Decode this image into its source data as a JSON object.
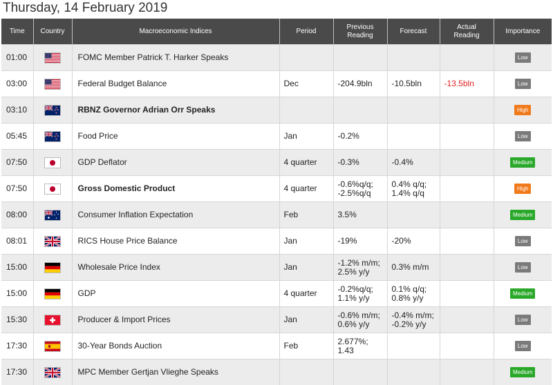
{
  "page_title": "Thursday, 14 February 2019",
  "columns": {
    "time": "Time",
    "country": "Country",
    "indices": "Macroeconomic Indices",
    "period": "Period",
    "previous": [
      "Previous",
      "Reading"
    ],
    "forecast": "Forecast",
    "actual": [
      "Actual",
      "Reading"
    ],
    "importance": "Importance"
  },
  "rows": [
    {
      "time": "01:00",
      "flag": "us-flag-icon",
      "event": "FOMC Member Patrick T. Harker Speaks",
      "bold": false,
      "period": "",
      "previous": [
        "",
        ""
      ],
      "forecast": [
        "",
        ""
      ],
      "actual": "",
      "importance": "Low"
    },
    {
      "time": "03:00",
      "flag": "us-flag-icon",
      "event": "Federal Budget Balance",
      "bold": false,
      "period": "Dec",
      "previous": [
        "-204.9bln",
        ""
      ],
      "forecast": [
        "-10.5bln",
        ""
      ],
      "actual": "-13.5bln",
      "importance": "Low"
    },
    {
      "time": "03:10",
      "flag": "nz-flag-icon",
      "event": "RBNZ Governor Adrian Orr Speaks",
      "bold": true,
      "period": "",
      "previous": [
        "",
        ""
      ],
      "forecast": [
        "",
        ""
      ],
      "actual": "",
      "importance": "High"
    },
    {
      "time": "05:45",
      "flag": "nz-flag-icon",
      "event": "Food Price",
      "bold": false,
      "period": "Jan",
      "previous": [
        "-0.2%",
        ""
      ],
      "forecast": [
        "",
        ""
      ],
      "actual": "",
      "importance": "Low"
    },
    {
      "time": "07:50",
      "flag": "jp-flag-icon",
      "event": "GDP Deflator",
      "bold": false,
      "period": "4 quarter",
      "previous": [
        "-0.3%",
        ""
      ],
      "forecast": [
        "-0.4%",
        ""
      ],
      "actual": "",
      "importance": "Medium"
    },
    {
      "time": "07:50",
      "flag": "jp-flag-icon",
      "event": "Gross Domestic Product",
      "bold": true,
      "period": "4 quarter",
      "previous": [
        "-0.6%q/q;",
        "-2.5%q/q"
      ],
      "forecast": [
        "0.4% q/q;",
        "1.4% q/q"
      ],
      "actual": "",
      "importance": "High"
    },
    {
      "time": "08:00",
      "flag": "au-flag-icon",
      "event": "Consumer Inflation Expectation",
      "bold": false,
      "period": "Feb",
      "previous": [
        "3.5%",
        ""
      ],
      "forecast": [
        "",
        ""
      ],
      "actual": "",
      "importance": "Medium"
    },
    {
      "time": "08:01",
      "flag": "gb-flag-icon",
      "event": "RICS House Price Balance",
      "bold": false,
      "period": "Jan",
      "previous": [
        "-19%",
        ""
      ],
      "forecast": [
        "-20%",
        ""
      ],
      "actual": "",
      "importance": "Low"
    },
    {
      "time": "15:00",
      "flag": "de-flag-icon",
      "event": "Wholesale Price Index",
      "bold": false,
      "period": "Jan",
      "previous": [
        "-1.2% m/m;",
        "2.5% y/y"
      ],
      "forecast": [
        "0.3% m/m",
        ""
      ],
      "actual": "",
      "importance": "Low"
    },
    {
      "time": "15:00",
      "flag": "de-flag-icon",
      "event": "GDP",
      "bold": false,
      "period": "4 quarter",
      "previous": [
        "-0.2%q/q;",
        "1.1% y/y"
      ],
      "forecast": [
        "0.1% q/q;",
        "0.8% y/y"
      ],
      "actual": "",
      "importance": "Medium"
    },
    {
      "time": "15:30",
      "flag": "ch-flag-icon",
      "event": "Producer & Import Prices",
      "bold": false,
      "period": "Jan",
      "previous": [
        "-0.6% m/m;",
        "0.6% y/y"
      ],
      "forecast": [
        "-0.4% m/m;",
        "-0.2% y/y"
      ],
      "actual": "",
      "importance": "Low"
    },
    {
      "time": "17:30",
      "flag": "es-flag-icon",
      "event": "30-Year Bonds Auction",
      "bold": false,
      "period": "Feb",
      "previous": [
        "2.677%;",
        "1.43"
      ],
      "forecast": [
        "",
        ""
      ],
      "actual": "",
      "importance": "Low"
    },
    {
      "time": "17:30",
      "flag": "gb-flag-icon",
      "event": "MPC Member Gertjan Vlieghe Speaks",
      "bold": false,
      "period": "",
      "previous": [
        "",
        ""
      ],
      "forecast": [
        "",
        ""
      ],
      "actual": "",
      "importance": "Medium"
    }
  ],
  "colors": {
    "header_bg": "#4a4a4a",
    "low": "#7a7a7a",
    "medium": "#2aa82a",
    "high": "#f07a1a",
    "actual_text": "#e02020"
  }
}
